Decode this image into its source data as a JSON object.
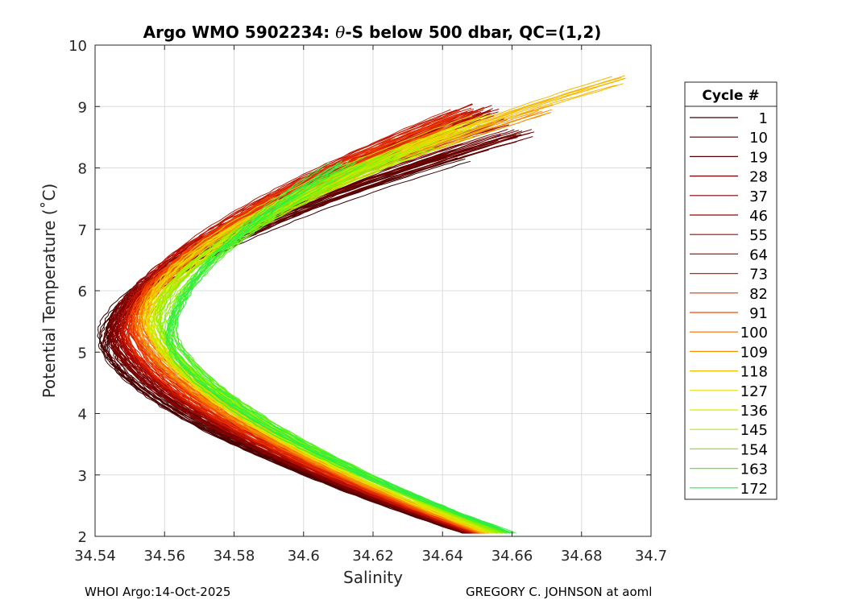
{
  "chart_data": {
    "type": "line",
    "title_prefix": "Argo WMO 5902234: ",
    "title_theta": "θ",
    "title_suffix": "-S below 500 dbar,  QC=(1,2)",
    "xlabel": "Salinity",
    "ylabel": "Potential Temperature (˚C)",
    "xlim": [
      34.54,
      34.7
    ],
    "ylim": [
      2,
      10
    ],
    "xticks": [
      "34.54",
      "34.56",
      "34.58",
      "34.6",
      "34.62",
      "34.64",
      "34.66",
      "34.68",
      "34.7"
    ],
    "xtick_values": [
      34.54,
      34.56,
      34.58,
      34.6,
      34.62,
      34.64,
      34.66,
      34.68,
      34.7
    ],
    "yticks": [
      "2",
      "3",
      "4",
      "5",
      "6",
      "7",
      "8",
      "9",
      "10"
    ],
    "ytick_values": [
      2,
      3,
      4,
      5,
      6,
      7,
      8,
      9,
      10
    ],
    "grid": true,
    "legend_title": "Cycle #",
    "legend_placement": "outside-right",
    "series": [
      {
        "name": "1",
        "color": "#3a0000",
        "s_min": 34.542,
        "t_min": 5.2,
        "s_bot": 34.648,
        "s_top": 34.645,
        "t_top": 8.2
      },
      {
        "name": "10",
        "color": "#4a0000",
        "s_min": 34.543,
        "t_min": 5.2,
        "s_bot": 34.648,
        "s_top": 34.65,
        "t_top": 8.3
      },
      {
        "name": "19",
        "color": "#5c0000",
        "s_min": 34.544,
        "t_min": 5.2,
        "s_bot": 34.647,
        "s_top": 34.66,
        "t_top": 8.5
      },
      {
        "name": "28",
        "color": "#6e0000",
        "s_min": 34.545,
        "t_min": 5.3,
        "s_bot": 34.648,
        "s_top": 34.662,
        "t_top": 8.55
      },
      {
        "name": "37",
        "color": "#800000",
        "s_min": 34.545,
        "t_min": 5.3,
        "s_bot": 34.648,
        "s_top": 34.655,
        "t_top": 8.7
      },
      {
        "name": "46",
        "color": "#950000",
        "s_min": 34.546,
        "t_min": 5.3,
        "s_bot": 34.649,
        "s_top": 34.652,
        "t_top": 8.9
      },
      {
        "name": "55",
        "color": "#aa0a00",
        "s_min": 34.547,
        "t_min": 5.3,
        "s_bot": 34.649,
        "s_top": 34.65,
        "t_top": 8.95
      },
      {
        "name": "64",
        "color": "#c01400",
        "s_min": 34.548,
        "t_min": 5.4,
        "s_bot": 34.65,
        "s_top": 34.648,
        "t_top": 8.95
      },
      {
        "name": "73",
        "color": "#d52000",
        "s_min": 34.549,
        "t_min": 5.4,
        "s_bot": 34.65,
        "s_top": 34.646,
        "t_top": 8.9
      },
      {
        "name": "82",
        "color": "#e83000",
        "s_min": 34.55,
        "t_min": 5.4,
        "s_bot": 34.651,
        "s_top": 34.644,
        "t_top": 8.8
      },
      {
        "name": "91",
        "color": "#f24800",
        "s_min": 34.551,
        "t_min": 5.4,
        "s_bot": 34.651,
        "s_top": 34.642,
        "t_top": 8.7
      },
      {
        "name": "100",
        "color": "#f56a00",
        "s_min": 34.552,
        "t_min": 5.5,
        "s_bot": 34.652,
        "s_top": 34.64,
        "t_top": 8.6
      },
      {
        "name": "109",
        "color": "#f59000",
        "s_min": 34.553,
        "t_min": 5.5,
        "s_bot": 34.652,
        "s_top": 34.668,
        "t_top": 8.95
      },
      {
        "name": "118",
        "color": "#f5b800",
        "s_min": 34.554,
        "t_min": 5.5,
        "s_bot": 34.653,
        "s_top": 34.689,
        "t_top": 9.45
      },
      {
        "name": "127",
        "color": "#ecdc00",
        "s_min": 34.555,
        "t_min": 5.5,
        "s_bot": 34.654,
        "s_top": 34.65,
        "t_top": 8.8
      },
      {
        "name": "136",
        "color": "#d6ea00",
        "s_min": 34.556,
        "t_min": 5.5,
        "s_bot": 34.655,
        "s_top": 34.645,
        "t_top": 8.6
      },
      {
        "name": "145",
        "color": "#b2ee00",
        "s_min": 34.557,
        "t_min": 5.5,
        "s_bot": 34.656,
        "s_top": 34.635,
        "t_top": 8.4
      },
      {
        "name": "154",
        "color": "#88f000",
        "s_min": 34.558,
        "t_min": 5.5,
        "s_bot": 34.657,
        "s_top": 34.625,
        "t_top": 8.2
      },
      {
        "name": "163",
        "color": "#5cf020",
        "s_min": 34.56,
        "t_min": 5.4,
        "s_bot": 34.658,
        "s_top": 34.615,
        "t_top": 8.1
      },
      {
        "name": "172",
        "color": "#30ee40",
        "s_min": 34.562,
        "t_min": 5.3,
        "s_bot": 34.66,
        "s_top": 34.608,
        "t_top": 8.05
      }
    ]
  },
  "footer": {
    "left": "WHOI Argo:14-Oct-2025",
    "right": "GREGORY C. JOHNSON at aoml"
  }
}
